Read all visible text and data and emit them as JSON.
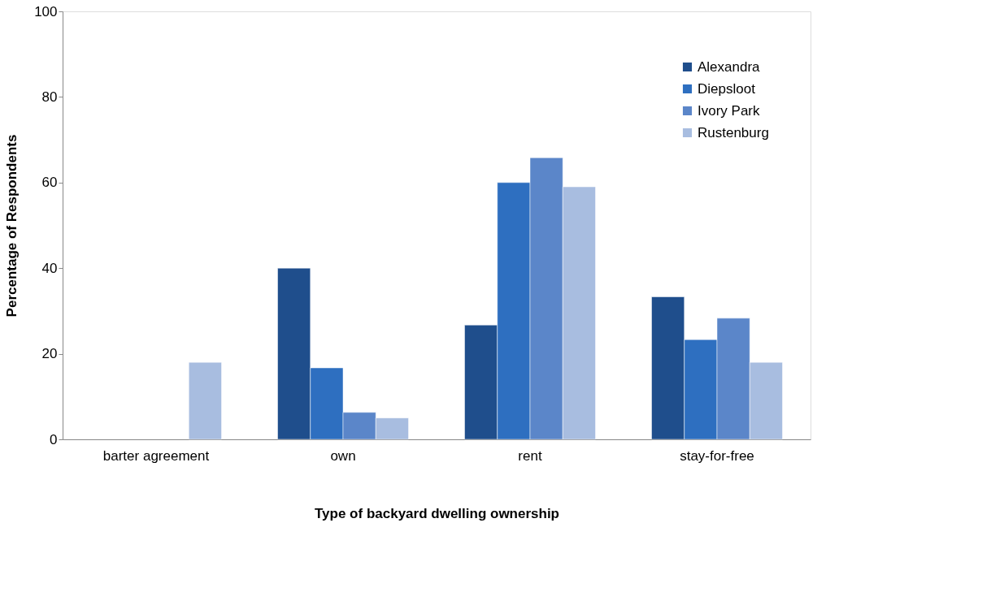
{
  "chart_data": {
    "type": "bar",
    "xlabel": "Type of backyard dwelling ownership",
    "ylabel": "Percentage of Respondents",
    "categories": [
      "barter agreement",
      "own",
      "rent",
      "stay-for-free"
    ],
    "series": [
      {
        "name": "Alexandra",
        "color": "#1f4e8c",
        "values": [
          null,
          40,
          26.7,
          33.3
        ]
      },
      {
        "name": "Diepsloot",
        "color": "#2e6fc0",
        "values": [
          null,
          16.7,
          60,
          23.3
        ]
      },
      {
        "name": "Ivory Park",
        "color": "#5b86c9",
        "values": [
          null,
          6.3,
          65.8,
          28.3
        ]
      },
      {
        "name": "Rustenburg",
        "color": "#a8bde0",
        "values": [
          18,
          5,
          59,
          18
        ]
      }
    ],
    "ylim": [
      0,
      100
    ],
    "yticks": [
      0,
      20,
      40,
      60,
      80,
      100
    ],
    "grid": false,
    "legend": "top right"
  }
}
